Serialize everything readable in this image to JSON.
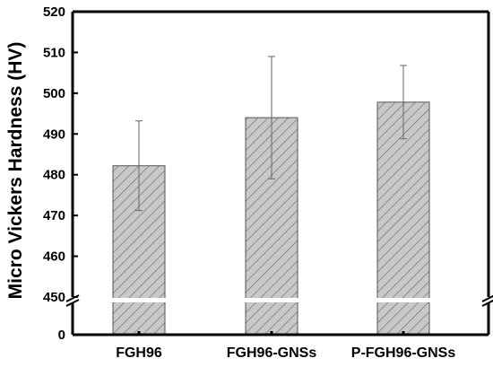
{
  "chart_data": {
    "type": "bar",
    "title": "",
    "xlabel": "",
    "ylabel": "Micro Vickers Hardness (HV)",
    "categories": [
      "FGH96",
      "FGH96-GNSs",
      "P-FGH96-GNSs"
    ],
    "values": [
      482.2,
      494.0,
      497.8
    ],
    "error_low": [
      471.2,
      479.0,
      488.8
    ],
    "error_high": [
      493.2,
      509.0,
      506.8
    ],
    "ylim": [
      450,
      520
    ],
    "broken_axis": {
      "lower_tick": 0,
      "break_at": 450
    },
    "y_ticks": [
      "450",
      "460",
      "470",
      "480",
      "490",
      "500",
      "510",
      "520"
    ],
    "y_tick_zero": "0",
    "bar_fill": "#c8c8c8",
    "hatch": "diagonal",
    "grid": false,
    "legend": "none"
  }
}
